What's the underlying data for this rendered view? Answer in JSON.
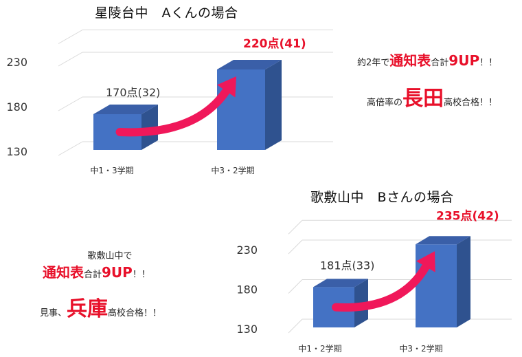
{
  "chart_data": [
    {
      "type": "bar",
      "title": "星陵台中　Aくんの場合",
      "categories": [
        "中1・3学期",
        "中3・2学期"
      ],
      "values": [
        170,
        220
      ],
      "data_labels": [
        "170点(32)",
        "220点(41)"
      ],
      "yticks": [
        "130",
        "180",
        "230"
      ],
      "ylim": [
        130,
        255
      ],
      "grid": true,
      "colors": {
        "bar_front": "#4472c4",
        "bar_side": "#2f528f",
        "bar_top": "#3a5fa8",
        "arrow": "#f0185a",
        "highlight": "#e8102a"
      }
    },
    {
      "type": "bar",
      "title": "歌敷山中　Bさんの場合",
      "categories": [
        "中1・2学期",
        "中3・2学期"
      ],
      "values": [
        181,
        235
      ],
      "data_labels": [
        "181点(33)",
        "235点(42)"
      ],
      "yticks": [
        "130",
        "180",
        "230"
      ],
      "ylim": [
        130,
        255
      ],
      "grid": true,
      "colors": {
        "bar_front": "#4472c4",
        "bar_side": "#2f528f",
        "bar_top": "#3a5fa8",
        "arrow": "#f0185a",
        "highlight": "#e8102a"
      }
    }
  ],
  "notes": {
    "a_line1_pre": "約2年で",
    "a_line1_red": "通知表",
    "a_line1_mid": "合計",
    "a_line1_red2": "9UP",
    "a_line1_post": "！！",
    "a_line2_pre": "高倍率の",
    "a_line2_red": "長田",
    "a_line2_post": "高校合格！！",
    "b_line1": "歌敷山中で",
    "b_line2_red": "通知表",
    "b_line2_mid": "合計",
    "b_line2_red2": "9UP",
    "b_line2_post": "！！",
    "b_line3_pre": "見事、",
    "b_line3_red": "兵庫",
    "b_line3_post": "高校合格！！"
  }
}
